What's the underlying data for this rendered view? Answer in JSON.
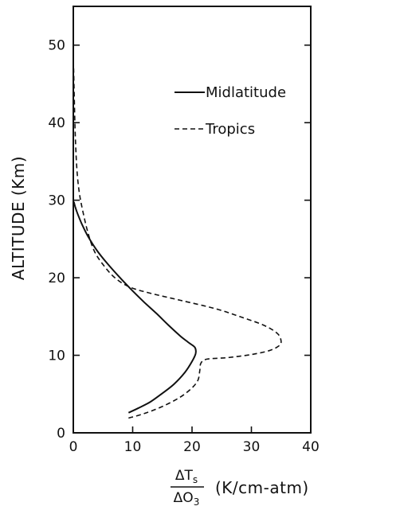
{
  "chart_data": {
    "type": "line",
    "title": "",
    "xlabel": {
      "numerator": "ΔT",
      "numerator_sub": "s",
      "denominator": "ΔO",
      "denominator_sub": "3",
      "units": "(K/cm-atm)"
    },
    "ylabel": "ALTITUDE (Km)",
    "xlim": [
      0,
      40
    ],
    "ylim": [
      0,
      55
    ],
    "xticks": [
      0,
      10,
      20,
      30,
      40
    ],
    "yticks": [
      0,
      10,
      20,
      30,
      40,
      50
    ],
    "grid": false,
    "legend_position": "upper-center",
    "series": [
      {
        "name": "Midlatitude",
        "line_style": "solid",
        "points": [
          [
            9.3,
            2.6
          ],
          [
            11,
            3.2
          ],
          [
            13,
            4.0
          ],
          [
            15,
            5.1
          ],
          [
            17,
            6.3
          ],
          [
            18.8,
            7.8
          ],
          [
            20,
            9.2
          ],
          [
            20.6,
            10.2
          ],
          [
            20.5,
            11.0
          ],
          [
            19.5,
            11.6
          ],
          [
            18,
            12.5
          ],
          [
            16,
            13.9
          ],
          [
            14,
            15.4
          ],
          [
            12,
            16.8
          ],
          [
            10,
            18.3
          ],
          [
            8,
            19.9
          ],
          [
            6,
            21.6
          ],
          [
            4,
            23.5
          ],
          [
            2.5,
            25.3
          ],
          [
            1.4,
            27.0
          ],
          [
            0.7,
            28.3
          ],
          [
            0.3,
            29.2
          ],
          [
            0.1,
            29.8
          ]
        ]
      },
      {
        "name": "Tropics",
        "line_style": "dashed",
        "points": [
          [
            9.3,
            1.9
          ],
          [
            12,
            2.5
          ],
          [
            15,
            3.4
          ],
          [
            18,
            4.6
          ],
          [
            20,
            5.8
          ],
          [
            21,
            6.8
          ],
          [
            21.3,
            8.0
          ],
          [
            21.5,
            9.0
          ],
          [
            22.5,
            9.5
          ],
          [
            26,
            9.7
          ],
          [
            30,
            10.1
          ],
          [
            33,
            10.6
          ],
          [
            34.6,
            11.2
          ],
          [
            35,
            11.8
          ],
          [
            34.4,
            12.8
          ],
          [
            32,
            13.9
          ],
          [
            28,
            15.0
          ],
          [
            24,
            16.0
          ],
          [
            18,
            17.1
          ],
          [
            13,
            18.0
          ],
          [
            9.5,
            18.8
          ],
          [
            7,
            20.0
          ],
          [
            5,
            21.7
          ],
          [
            3.5,
            23.5
          ],
          [
            2.4,
            26.0
          ],
          [
            1.6,
            28.6
          ],
          [
            1.0,
            31.0
          ],
          [
            0.6,
            34.0
          ],
          [
            0.35,
            38.0
          ],
          [
            0.2,
            42.0
          ],
          [
            0.1,
            45.5
          ],
          [
            0.05,
            47.0
          ]
        ]
      }
    ]
  }
}
